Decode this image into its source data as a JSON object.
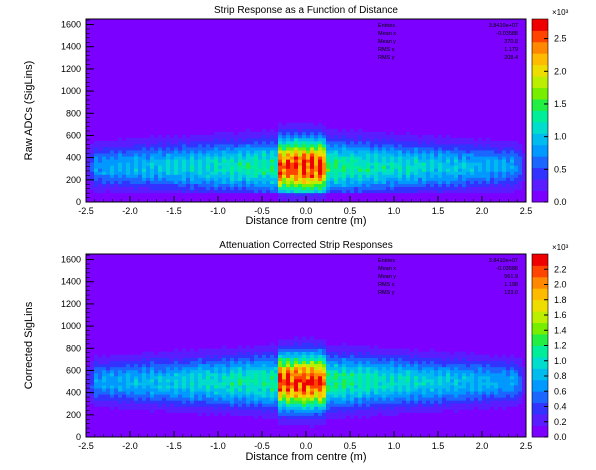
{
  "chart_data": [
    {
      "type": "heatmap",
      "title": "Strip Response as a Function of Distance",
      "xlabel": "Distance from centre (m)",
      "ylabel": "Raw ADCs (SigLins)",
      "xlim": [
        -2.5,
        2.5
      ],
      "ylim": [
        0,
        1650
      ],
      "x_ticks": [
        "-2.5",
        "-2.0",
        "-1.5",
        "-1.0",
        "-0.5",
        "0.0",
        "0.5",
        "1.0",
        "1.5",
        "2.0",
        "2.5"
      ],
      "y_ticks": [
        "0",
        "200",
        "400",
        "600",
        "800",
        "1000",
        "1200",
        "1400",
        "1600"
      ],
      "colorbar": {
        "range": [
          0,
          2.8
        ],
        "exponent": "×10³",
        "ticks": [
          "0.0",
          "0.5",
          "1.0",
          "1.5",
          "2.0",
          "2.5"
        ]
      },
      "stats": [
        {
          "label": "Entries",
          "value": "3.8410e+07"
        },
        {
          "label": "Mean x",
          "value": "-0.03588"
        },
        {
          "label": "Mean y",
          "value": "370.8"
        },
        {
          "label": "RMS x",
          "value": "1.179"
        },
        {
          "label": "RMS y",
          "value": "208.4"
        }
      ],
      "density_model": {
        "core_y": 320,
        "core_x_range": [
          -0.3,
          0.25
        ],
        "max_y_centre": 1000,
        "max_y_edge": 700
      },
      "grid": false
    },
    {
      "type": "heatmap",
      "title": "Attenuation Corrected Strip Responses",
      "xlabel": "Distance from centre (m)",
      "ylabel": "Corrected SigLins",
      "xlim": [
        -2.5,
        2.5
      ],
      "ylim": [
        0,
        1650
      ],
      "x_ticks": [
        "-2.5",
        "-2.0",
        "-1.5",
        "-1.0",
        "-0.5",
        "0.0",
        "0.5",
        "1.0",
        "1.5",
        "2.0",
        "2.5"
      ],
      "y_ticks": [
        "0",
        "200",
        "400",
        "600",
        "800",
        "1000",
        "1200",
        "1400",
        "1600"
      ],
      "colorbar": {
        "range": [
          0,
          2.4
        ],
        "exponent": "×10³",
        "ticks": [
          "0.0",
          "0.2",
          "0.4",
          "0.6",
          "0.8",
          "1.0",
          "1.2",
          "1.4",
          "1.6",
          "1.8",
          "2.0",
          "2.2"
        ]
      },
      "stats": [
        {
          "label": "Entries",
          "value": "3.8410e+07"
        },
        {
          "label": "Mean x",
          "value": "-0.03588"
        },
        {
          "label": "Mean y",
          "value": "561.9"
        },
        {
          "label": "RMS x",
          "value": "1.198"
        },
        {
          "label": "RMS y",
          "value": "123.0"
        }
      ],
      "density_model": {
        "core_y": 500,
        "core_x_range": [
          -0.3,
          0.25
        ],
        "max_y_centre": 1050,
        "max_y_edge": 900
      },
      "grid": false
    }
  ],
  "palette": [
    "#7c00ff",
    "#5a1dff",
    "#3333ff",
    "#1a66ff",
    "#0099ff",
    "#00bbee",
    "#00ddcc",
    "#00ee99",
    "#22ee44",
    "#77ee00",
    "#bbee00",
    "#eedd00",
    "#ffbb00",
    "#ff8800",
    "#ff4400",
    "#ee0000"
  ]
}
